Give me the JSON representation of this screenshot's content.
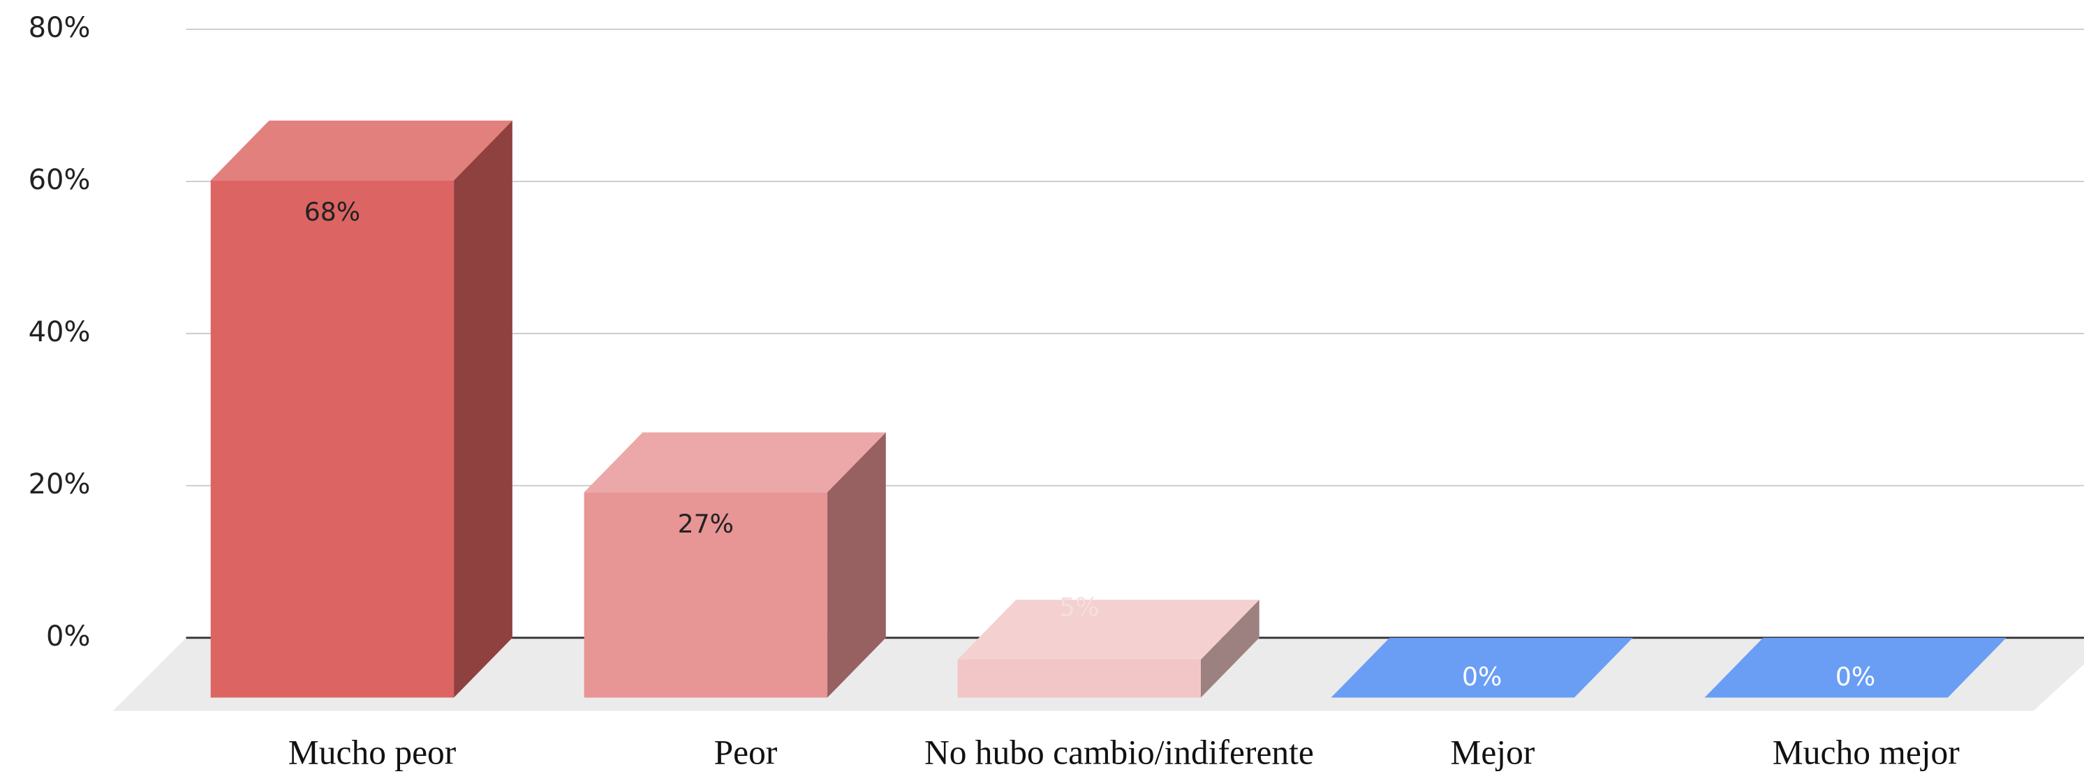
{
  "chart_data": {
    "type": "bar3d",
    "categories": [
      "Mucho peor",
      "Peor",
      "No hubo cambio/indiferente",
      "Mejor",
      "Mucho mejor"
    ],
    "values": [
      68,
      27,
      5,
      0,
      0
    ],
    "value_labels": [
      "68%",
      "27%",
      "5%",
      "0%",
      "0%"
    ],
    "colors": [
      "#dc6462",
      "#e89595",
      "#f2c6c6",
      "#6a9ef5",
      "#6a9ef5"
    ],
    "ylim": [
      0,
      80
    ],
    "yticks": [
      {
        "value": 0,
        "label": "0%"
      },
      {
        "value": 20,
        "label": "20%"
      },
      {
        "value": 40,
        "label": "40%"
      },
      {
        "value": 60,
        "label": "60%"
      },
      {
        "value": 80,
        "label": "80%"
      }
    ],
    "grid": true
  }
}
